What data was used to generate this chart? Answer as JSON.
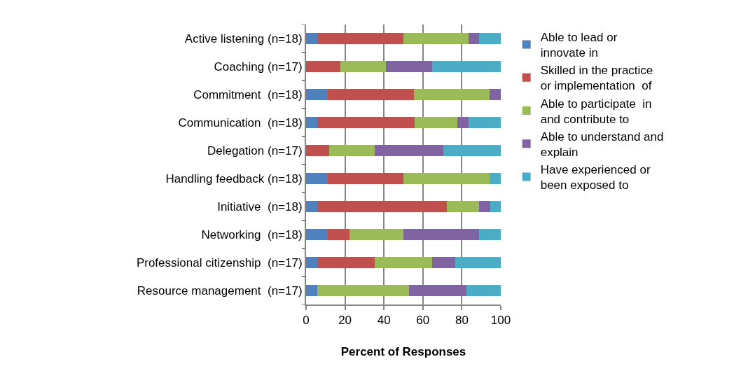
{
  "chart_data": {
    "type": "bar",
    "orientation": "horizontal",
    "stacked": true,
    "xlabel": "Percent of Responses",
    "categories": [
      "Active listening (n=18)",
      "Coaching (n=17)",
      "Commitment  (n=18)",
      "Communication  (n=18)",
      "Delegation (n=17)",
      "Handling feedback (n=18)",
      "Initiative  (n=18)",
      "Networking  (n=18)",
      "Professional citizenship  (n=17)",
      "Resource management  (n=17)"
    ],
    "series": [
      {
        "name": "Able to lead or innovate in",
        "color": "#4f81bd",
        "values": [
          5.6,
          0,
          11.1,
          5.6,
          0,
          11.1,
          5.6,
          11.1,
          5.9,
          5.9
        ]
      },
      {
        "name": "Skilled in the practice or implementation  of",
        "color": "#c0504d",
        "values": [
          44.4,
          17.6,
          44.4,
          50,
          11.8,
          38.9,
          66.7,
          11.1,
          29.4,
          0
        ]
      },
      {
        "name": "Able to participate  in and contribute to",
        "color": "#9bbb59",
        "values": [
          33.3,
          23.5,
          38.9,
          22.2,
          23.5,
          44.4,
          16.7,
          27.8,
          29.4,
          47.1
        ]
      },
      {
        "name": "Able to understand and explain",
        "color": "#8064a2",
        "values": [
          5.6,
          23.5,
          5.6,
          5.6,
          35.3,
          0,
          5.6,
          38.9,
          11.8,
          29.4
        ]
      },
      {
        "name": "Have experienced or been exposed to",
        "color": "#4bacc6",
        "values": [
          11.1,
          35.3,
          0,
          16.7,
          29.4,
          5.6,
          5.6,
          11.1,
          23.5,
          17.6
        ]
      }
    ],
    "xlim": [
      0,
      100
    ],
    "xticks": [
      0,
      20,
      40,
      60,
      80,
      100
    ],
    "grid": "x",
    "legend": "right"
  }
}
